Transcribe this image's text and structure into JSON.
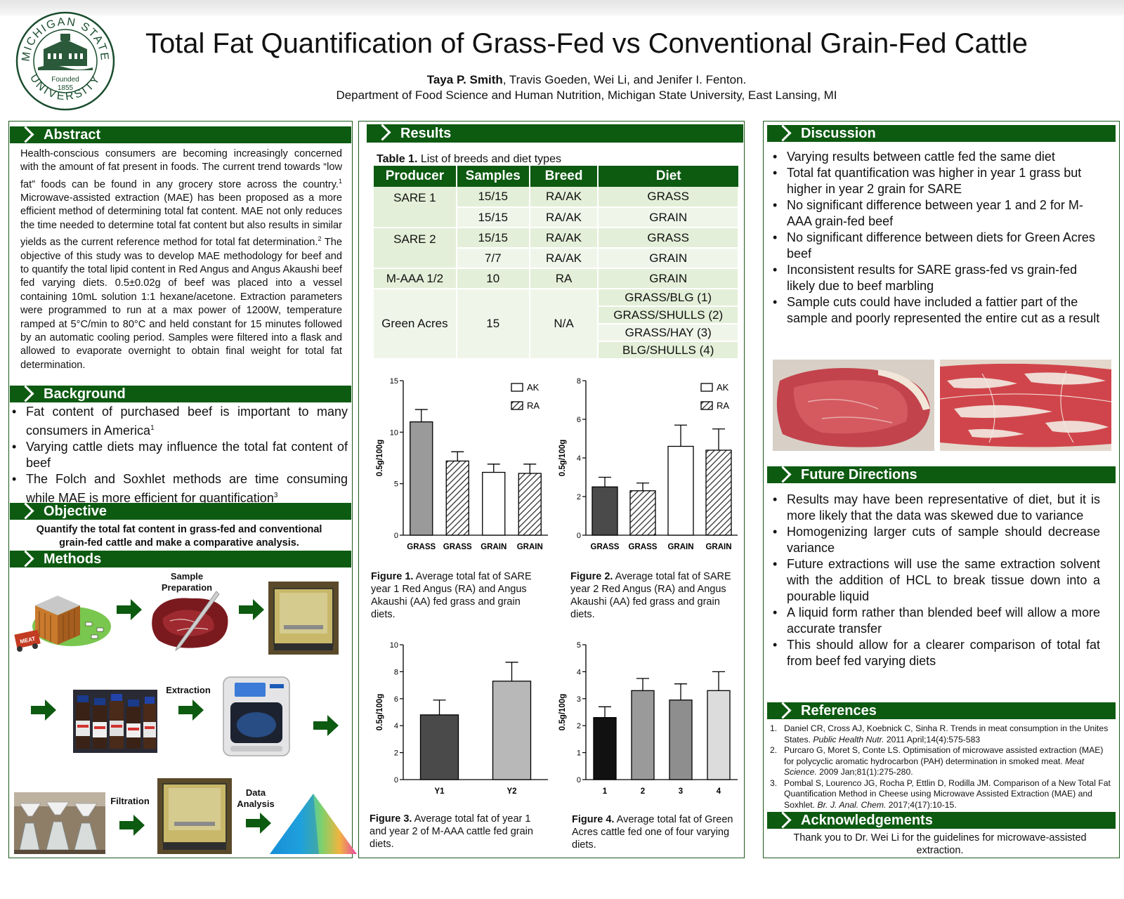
{
  "header": {
    "title": "Total Fat Quantification of Grass-Fed vs Conventional Grain-Fed Cattle",
    "author_lead": "Taya P. Smith",
    "authors_rest": ", Travis Goeden, Wei Li, and Jenifer I. Fenton.",
    "affiliation": "Department of Food Science and Human Nutrition, Michigan State University, East Lansing, MI",
    "seal_top": "MICHIGAN STATE",
    "seal_bottom": "UNIVERSITY",
    "seal_founded": "Founded",
    "seal_year": "1855"
  },
  "abstract": {
    "heading": "Abstract",
    "p1": "Health-conscious consumers are becoming increasingly concerned with the amount of fat present in foods. The current trend towards “low fat” foods can be found in any grocery store across the country.",
    "sup1": "1",
    "p2": " Microwave-assisted extraction (MAE) has been proposed as a more efficient method of determining total fat content. MAE not only reduces the time needed to determine total fat content but also results in similar yields as the current reference method for total fat determination.",
    "sup2": "2",
    "p3": " The objective of this study was to develop MAE methodology for beef and to quantify the total lipid content in Red Angus and Angus Akaushi beef fed varying diets. 0.5±0.02g of beef was placed into a vessel containing 10mL solution 1:1 hexane/acetone. Extraction parameters were programmed to run at a max power of 1200W, temperature ramped at 5°C/min to 80°C and held constant for 15 minutes followed by an automatic cooling period. Samples were filtered into a flask and allowed to evaporate overnight to obtain final weight for total fat determination."
  },
  "background": {
    "heading": "Background",
    "b1": "Fat content of purchased beef is important to many consumers in America",
    "b1_sup": "1",
    "b2": "Varying cattle diets may influence the total fat content of beef",
    "b3": "The Folch and Soxhlet methods are time consuming while MAE is more efficient for quantification",
    "b3_sup": "3"
  },
  "objective": {
    "heading": "Objective",
    "text": "Quantify the total fat content in grass-fed and conventional grain-fed cattle and make a comparative analysis."
  },
  "methods": {
    "heading": "Methods",
    "sample_prep": "Sample Preparation",
    "extraction": "Extraction",
    "filtration": "Filtration",
    "data_analysis": "Data Analysis",
    "meat_sign": "MEAT"
  },
  "results": {
    "heading": "Results",
    "table_caption_bold": "Table 1.",
    "table_caption": " List of breeds and diet types",
    "table_headers": [
      "Producer",
      "Samples",
      "Breed",
      "Diet"
    ],
    "table_rows": {
      "sare1_producer": "SARE 1",
      "sare1_r1": [
        "15/15",
        "RA/AK",
        "GRASS"
      ],
      "sare1_r2": [
        "15/15",
        "RA/AK",
        "GRAIN"
      ],
      "sare2_producer": "SARE 2",
      "sare2_r1": [
        "15/15",
        "RA/AK",
        "GRASS"
      ],
      "sare2_r2": [
        "7/7",
        "RA/AK",
        "GRAIN"
      ],
      "maaa": [
        "M-AAA 1/2",
        "10",
        "RA",
        "GRAIN"
      ],
      "ga_producer": "Green Acres",
      "ga_samples": "15",
      "ga_breed": "N/A",
      "ga_diets": [
        "GRASS/BLG (1)",
        "GRASS/SHULLS (2)",
        "GRASS/HAY (3)",
        "BLG/SHULLS (4)"
      ]
    },
    "fig1_caption_bold": "Figure 1.",
    "fig1_caption": " Average total fat of SARE year 1 Red Angus (RA) and Angus Akaushi (AA) fed grass and grain diets.",
    "fig2_caption_bold": "Figure 2.",
    "fig2_caption": " Average total fat of SARE year 2 Red Angus (RA) and Angus Akaushi (AA) fed grass and grain diets.",
    "fig3_caption_bold": "Figure 3.",
    "fig3_caption": " Average total fat of year 1 and year 2 of M-AAA cattle fed grain diets.",
    "fig4_caption_bold": "Figure 4.",
    "fig4_caption": " Average total fat of Green Acres cattle fed one of four varying diets."
  },
  "chart_data": [
    {
      "type": "bar",
      "ylabel": "0.5g/100g",
      "ylim": [
        0,
        15
      ],
      "yticks": [
        "0",
        "5",
        "10",
        "15"
      ],
      "categories": [
        "GRASS",
        "GRASS",
        "GRAIN",
        "GRAIN"
      ],
      "values": [
        11.0,
        7.2,
        6.1,
        6.0
      ],
      "errors": [
        1.2,
        0.9,
        0.8,
        0.9
      ],
      "fills": [
        "gray",
        "hatch",
        "white",
        "hatch"
      ],
      "legend": [
        "AK",
        "RA"
      ],
      "legend_position": "top-right"
    },
    {
      "type": "bar",
      "ylabel": "0.5g/100g",
      "ylim": [
        0,
        8
      ],
      "yticks": [
        "0",
        "2",
        "4",
        "6",
        "8"
      ],
      "categories": [
        "GRASS",
        "GRASS",
        "GRAIN",
        "GRAIN"
      ],
      "values": [
        2.5,
        2.3,
        4.6,
        4.4
      ],
      "errors": [
        0.5,
        0.4,
        1.1,
        1.1
      ],
      "fills": [
        "dark",
        "hatch",
        "white",
        "hatch"
      ],
      "legend": [
        "AK",
        "RA"
      ],
      "legend_position": "top-right"
    },
    {
      "type": "bar",
      "ylabel": "0.5g/100g",
      "ylim": [
        0,
        10
      ],
      "yticks": [
        "0",
        "2",
        "4",
        "6",
        "8",
        "10"
      ],
      "categories": [
        "Y1",
        "Y2"
      ],
      "values": [
        4.8,
        7.3
      ],
      "errors": [
        1.1,
        1.4
      ],
      "fills": [
        "dark",
        "lightgray"
      ]
    },
    {
      "type": "bar",
      "ylabel": "0.5g/100g",
      "ylim": [
        0,
        5
      ],
      "yticks": [
        "0",
        "1",
        "2",
        "3",
        "4",
        "5"
      ],
      "categories": [
        "1",
        "2",
        "3",
        "4"
      ],
      "values": [
        2.3,
        3.3,
        2.95,
        3.3
      ],
      "errors": [
        0.4,
        0.45,
        0.6,
        0.7
      ],
      "fills": [
        "black",
        "gray",
        "midgray",
        "lightgray"
      ]
    }
  ],
  "discussion": {
    "heading": "Discussion",
    "items": [
      "Varying results between cattle fed the same diet",
      "Total fat quantification was higher in year 1 grass but higher in year 2 grain for SARE",
      "No significant difference between year 1 and 2 for M-AAA grain-fed beef",
      "No significant difference between diets for Green Acres beef",
      "Inconsistent results for SARE grass-fed vs grain-fed likely due to beef marbling",
      "Sample cuts could have included a fattier part of the sample and poorly represented the entire cut as a result"
    ]
  },
  "future": {
    "heading": "Future Directions",
    "items": [
      "Results may have been representative of diet, but it is more likely that the data was skewed due to variance",
      "Homogenizing larger cuts of sample should decrease variance",
      "Future extractions will use the same extraction solvent with the addition of HCL to break tissue down into a pourable liquid",
      "A liquid form rather than blended beef will allow a more accurate transfer",
      "This should allow for a clearer comparison of total fat from beef fed varying diets"
    ]
  },
  "references": {
    "heading": "References",
    "r1_num": "1.",
    "r1_a": "Daniel CR, Cross AJ, Koebnick C, Sinha R. Trends in meat consumption in the Unites States. ",
    "r1_j": "Public Health Nutr.",
    "r1_b": " 2011 April;14(4):575-583",
    "r2_num": "2.",
    "r2_a": "Purcaro G, Moret S, Conte LS. Optimisation of microwave assisted extraction (MAE) for polycyclic aromatic hydrocarbon (PAH) determination in smoked meat. ",
    "r2_j": "Meat Science.",
    "r2_b": " 2009 Jan;81(1):275-280.",
    "r3_num": "3.",
    "r3_a": "Pombal S, Lourenco JG, Rocha P, Ettlin D, Rodilla JM. Comparison of a New Total Fat Quantification Method in Cheese using Microwave Assisted Extraction (MAE) and Soxhlet. ",
    "r3_j": "Br. J. Anal. Chem.",
    "r3_b": " 2017;4(17):10-15."
  },
  "acknowledgements": {
    "heading": "Acknowledgements",
    "text": "Thank you to Dr. Wei Li for the guidelines for microwave-assisted extraction."
  },
  "colors": {
    "header_green": "#0d5a11",
    "table_row_light": "#e3efd8",
    "table_row_lighter": "#f0f5ea"
  }
}
